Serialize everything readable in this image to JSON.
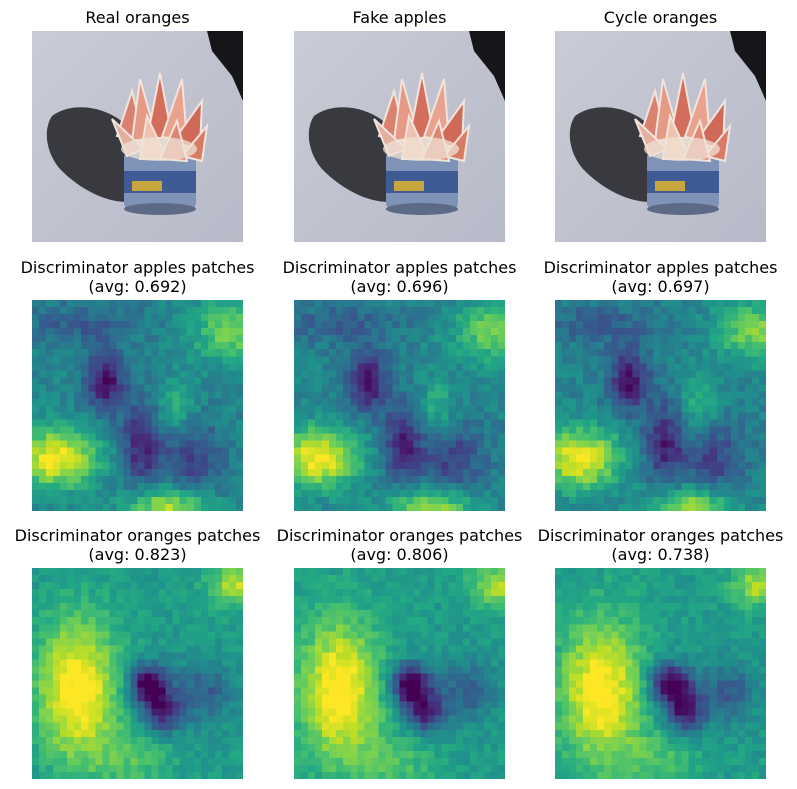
{
  "figure": {
    "rows": [
      {
        "kind": "photo",
        "panels": [
          {
            "title": "Real oranges",
            "image": "peeled-grapefruit-in-can-photo"
          },
          {
            "title": "Fake apples",
            "image": "peeled-grapefruit-in-can-photo"
          },
          {
            "title": "Cycle oranges",
            "image": "peeled-grapefruit-in-can-photo"
          }
        ]
      },
      {
        "kind": "heatmap",
        "panels": [
          {
            "title": "Discriminator apples patches",
            "subtitle": "(avg: 0.692)",
            "image": "viridis-patch-heatmap"
          },
          {
            "title": "Discriminator apples patches",
            "subtitle": "(avg: 0.696)",
            "image": "viridis-patch-heatmap"
          },
          {
            "title": "Discriminator apples patches",
            "subtitle": "(avg: 0.697)",
            "image": "viridis-patch-heatmap"
          }
        ]
      },
      {
        "kind": "heatmap",
        "panels": [
          {
            "title": "Discriminator oranges patches",
            "subtitle": "(avg: 0.823)",
            "image": "viridis-patch-heatmap"
          },
          {
            "title": "Discriminator oranges patches",
            "subtitle": "(avg: 0.806)",
            "image": "viridis-patch-heatmap"
          },
          {
            "title": "Discriminator oranges patches",
            "subtitle": "(avg: 0.738)",
            "image": "viridis-patch-heatmap"
          }
        ]
      }
    ],
    "colors": {
      "background": "#ffffff",
      "viridis_low": "#440154",
      "viridis_mid": "#21918c",
      "viridis_high": "#fde725"
    }
  }
}
